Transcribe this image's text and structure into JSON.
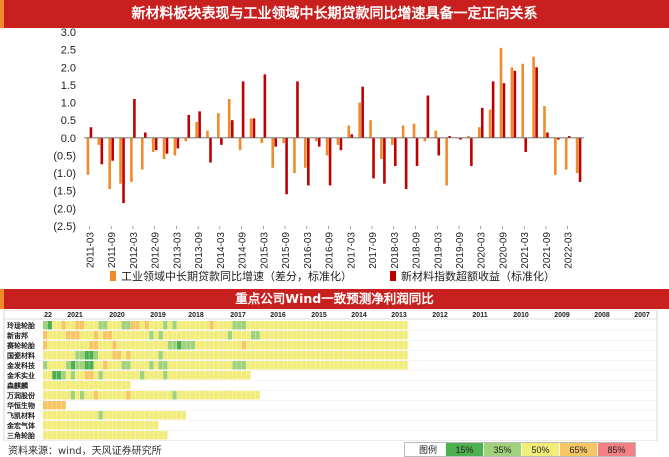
{
  "title": "新材料板块表现与工业领域中长期贷款同比增速具备一定正向关系",
  "subtitle": "重点公司Wind一致预测净利润同比",
  "source": "资料来源：wind，天风证券研究所",
  "chart_data": {
    "type": "bar",
    "ylim": [
      -2.5,
      3.0
    ],
    "yticks": [
      "3.0",
      "2.5",
      "2.0",
      "1.5",
      "1.0",
      "0.5",
      "0.0",
      "(0.5)",
      "(1.0)",
      "(1.5)",
      "(2.0)",
      "(2.5)"
    ],
    "x_tick_labels": [
      "2011-03",
      "2011-09",
      "2012-03",
      "2012-09",
      "2013-03",
      "2013-09",
      "2014-03",
      "2014-09",
      "2015-03",
      "2015-09",
      "2016-03",
      "2016-09",
      "2017-03",
      "2017-09",
      "2018-03",
      "2018-09",
      "2019-03",
      "2019-09",
      "2020-03",
      "2020-09",
      "2021-03",
      "2021-09",
      "2022-03"
    ],
    "colors": {
      "loan": "#f08a2a",
      "excess": "#c00000"
    },
    "series": [
      {
        "name": "工业领域中长期贷款同比增速（差分，标准化）",
        "key": "loan",
        "values": [
          -1.05,
          -0.2,
          -1.45,
          -1.3,
          -1.25,
          -0.9,
          -0.4,
          -0.6,
          -0.5,
          -0.1,
          0.45,
          0.2,
          0.7,
          1.1,
          -0.35,
          0.55,
          -0.15,
          -0.85,
          -0.15,
          -1.0,
          -0.85,
          -0.1,
          -0.5,
          -0.2,
          0.35,
          1.0,
          0.5,
          -0.6,
          -0.2,
          0.35,
          0.4,
          -0.1,
          0.2,
          -1.35,
          0.0,
          0.05,
          0.3,
          0.8,
          2.55,
          2.0,
          2.1,
          2.3,
          0.9,
          -1.05,
          -0.9,
          -1.0
        ]
      },
      {
        "name": "新材料指数超额收益（标准化）",
        "key": "excess",
        "values": [
          0.3,
          -0.75,
          -0.65,
          -1.85,
          1.1,
          0.15,
          -0.35,
          -0.45,
          -0.3,
          0.65,
          0.75,
          -0.7,
          -0.2,
          0.5,
          1.6,
          0.55,
          1.8,
          -0.25,
          -1.6,
          1.6,
          -1.35,
          -0.25,
          -1.35,
          -0.35,
          0.1,
          1.45,
          -1.15,
          -1.3,
          -0.8,
          -1.45,
          -0.8,
          1.2,
          -0.5,
          0.05,
          -0.05,
          -0.8,
          0.85,
          1.6,
          1.55,
          1.9,
          -0.4,
          2.0,
          0.15,
          -0.05,
          0.05,
          -1.25
        ]
      }
    ],
    "legend_position": "bottom"
  },
  "heatmap": {
    "col_headers": [
      "22",
      "2021",
      "2020",
      "2019",
      "2018",
      "2017",
      "2016",
      "2015",
      "2014",
      "2013",
      "2012",
      "2011",
      "2010",
      "2009",
      "2008",
      "2007"
    ],
    "rows": [
      {
        "name": "玲珑轮胎",
        "values": [
          2,
          1,
          3,
          3,
          4,
          3,
          3,
          4,
          4,
          3,
          3,
          3,
          2,
          2,
          3,
          3,
          3,
          2,
          2,
          4,
          4,
          3,
          4,
          3,
          3,
          3,
          2,
          3,
          2,
          3,
          3,
          3,
          3,
          3,
          3,
          3,
          4,
          3,
          3,
          3,
          3,
          2,
          2,
          2,
          3,
          3,
          3,
          3,
          3,
          3,
          3,
          3,
          3,
          3,
          3,
          3,
          3,
          3,
          3,
          3,
          3,
          3,
          3,
          3,
          3,
          3,
          3,
          3,
          3,
          3,
          3,
          3,
          3,
          3,
          3,
          3,
          3,
          3,
          3
        ]
      },
      {
        "name": "新宙邦",
        "values": [
          4,
          3,
          3,
          3,
          3,
          4,
          4,
          4,
          3,
          3,
          3,
          4,
          3,
          4,
          4,
          3,
          3,
          3,
          3,
          3,
          3,
          3,
          3,
          2,
          3,
          2,
          3,
          3,
          3,
          3,
          3,
          3,
          3,
          3,
          3,
          3,
          3,
          3,
          3,
          3,
          2,
          3,
          3,
          3,
          3,
          2,
          2,
          3,
          3,
          3,
          3,
          3,
          3,
          3,
          3,
          3,
          3,
          3,
          3,
          3,
          3,
          3,
          3,
          3,
          3,
          3,
          3,
          3,
          3,
          3,
          3,
          3,
          3,
          3,
          3,
          3,
          3,
          3,
          3
        ]
      },
      {
        "name": "赛轮轮胎",
        "values": [
          4,
          3,
          3,
          3,
          3,
          3,
          3,
          3,
          3,
          3,
          4,
          4,
          3,
          3,
          3,
          4,
          3,
          3,
          3,
          3,
          3,
          3,
          3,
          3,
          3,
          3,
          3,
          2,
          2,
          1,
          2,
          2,
          2,
          3,
          3,
          3,
          3,
          3,
          3,
          3,
          3,
          3,
          3,
          4,
          3,
          3,
          3,
          3,
          3,
          3,
          3,
          3,
          3,
          3,
          3,
          3,
          3,
          3,
          3,
          3,
          3,
          3,
          3,
          3,
          3,
          3,
          3,
          3,
          3,
          3,
          3,
          3,
          3,
          3,
          3,
          3,
          3,
          3,
          3
        ]
      },
      {
        "name": "国瓷材料",
        "values": [
          3,
          3,
          3,
          3,
          3,
          3,
          3,
          2,
          2,
          1,
          1,
          2,
          3,
          3,
          3,
          4,
          4,
          3,
          4,
          3,
          3,
          3,
          3,
          3,
          3,
          2,
          3,
          3,
          3,
          3,
          3,
          3,
          3,
          3,
          3,
          3,
          3,
          3,
          3,
          3,
          3,
          3,
          3,
          3,
          3,
          3,
          3,
          3,
          3,
          3,
          3,
          3,
          3,
          3,
          3,
          3,
          3,
          3,
          3,
          3,
          3,
          3,
          3,
          3,
          3,
          3,
          3,
          3,
          3,
          3,
          3,
          3,
          3,
          3,
          3,
          3,
          3,
          3,
          3
        ]
      },
      {
        "name": "金发科技",
        "values": [
          2,
          3,
          3,
          3,
          3,
          2,
          1,
          2,
          2,
          1,
          1,
          3,
          3,
          4,
          3,
          3,
          3,
          2,
          2,
          3,
          3,
          3,
          3,
          2,
          3,
          2,
          2,
          3,
          3,
          3,
          3,
          3,
          3,
          3,
          3,
          3,
          3,
          3,
          3,
          3,
          3,
          2,
          2,
          2,
          3,
          3,
          3,
          3,
          3,
          3,
          3,
          3,
          3,
          3,
          3,
          3,
          3,
          3,
          3,
          3,
          3,
          3,
          3,
          3,
          3,
          3,
          3,
          3,
          3,
          3,
          3,
          3,
          3,
          3,
          3,
          3,
          3,
          3,
          3
        ]
      },
      {
        "name": "金禾实业",
        "values": [
          3,
          3,
          1,
          1,
          2,
          3,
          2,
          3,
          3,
          4,
          4,
          3,
          2,
          3,
          3,
          3,
          3,
          3,
          3,
          3,
          3,
          2,
          3,
          3,
          3,
          3,
          2,
          3,
          3,
          3,
          3,
          3,
          3,
          3,
          3,
          3,
          3,
          3,
          3,
          3,
          3,
          3,
          3,
          3,
          3
        ]
      },
      {
        "name": "森麒麟",
        "values": [
          3,
          3,
          3,
          3,
          3,
          3,
          3,
          3,
          3,
          3,
          3,
          3,
          3,
          3,
          3,
          3,
          3,
          3,
          3
        ]
      },
      {
        "name": "万润股份",
        "values": [
          3,
          3,
          3,
          3,
          3,
          3,
          2,
          3,
          2,
          3,
          3,
          4,
          3,
          3,
          3,
          3,
          3,
          3,
          4,
          3,
          3,
          3,
          3,
          3,
          3,
          3,
          3,
          3,
          2,
          3,
          3,
          3,
          3,
          3,
          3,
          3,
          3,
          3,
          3,
          3,
          3,
          3,
          3,
          3,
          3,
          3,
          3
        ]
      },
      {
        "name": "华恒生物",
        "values": [
          4,
          4,
          4,
          4,
          4
        ]
      },
      {
        "name": "飞凯材料",
        "values": [
          3,
          3,
          3,
          3,
          3,
          3,
          3,
          3,
          3,
          3,
          3,
          3,
          2,
          3,
          3,
          3,
          3,
          3,
          3,
          3,
          3,
          3,
          3,
          3,
          3,
          3,
          3,
          3,
          3,
          3,
          3
        ]
      },
      {
        "name": "金宏气体",
        "values": [
          3,
          3,
          3,
          3,
          3,
          3,
          3,
          3,
          3,
          3,
          3,
          3,
          3,
          3,
          3,
          3,
          3,
          3,
          3,
          3,
          3,
          3,
          3,
          3,
          3
        ]
      },
      {
        "name": "三角轮胎",
        "values": [
          3,
          3,
          3,
          3,
          3,
          3,
          3,
          3,
          3,
          3,
          3,
          3,
          3,
          3,
          3,
          3,
          3,
          3,
          3,
          3,
          3,
          3,
          3,
          3,
          3,
          3,
          3
        ]
      }
    ]
  },
  "legend": {
    "label": "图例",
    "items": [
      {
        "text": "15%",
        "color": "#4caf50"
      },
      {
        "text": "35%",
        "color": "#9fd27a"
      },
      {
        "text": "50%",
        "color": "#f2ec7a"
      },
      {
        "text": "65%",
        "color": "#f7c563"
      },
      {
        "text": "85%",
        "color": "#f28084"
      }
    ]
  }
}
